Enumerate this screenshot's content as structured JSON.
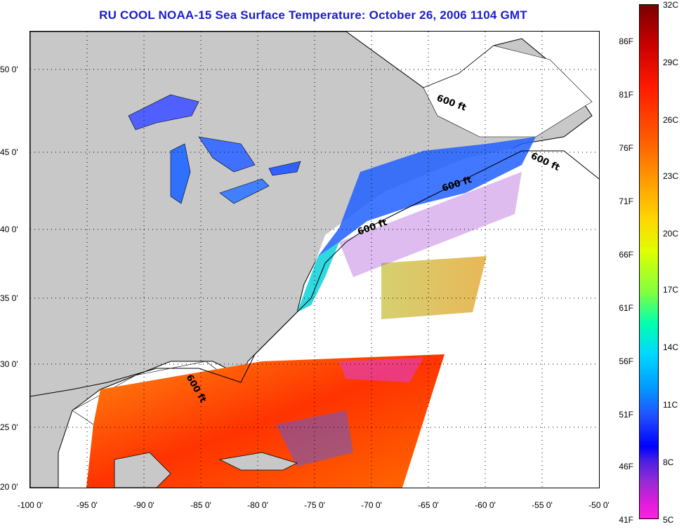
{
  "title": "RU COOL  NOAA-15  Sea Surface Temperature:  October 26, 2006 1104 GMT",
  "map": {
    "lat_ticks": [
      "50 0'",
      "45 0'",
      "40 0'",
      "35 0'",
      "30 0'",
      "25 0'",
      "20 0'"
    ],
    "lon_ticks": [
      "-100 0'",
      "-95 0'",
      "-90 0'",
      "-85 0'",
      "-80 0'",
      "-75 0'",
      "-70 0'",
      "-65 0'",
      "-60 0'",
      "-55 0'",
      "-50 0'"
    ],
    "contour_labels": [
      "600 ft",
      "600 ft",
      "600 ft",
      "600 ft",
      "600 ft"
    ],
    "colors": {
      "land": "#c8c8c8",
      "cloud": "#ffffff",
      "coast": "#000000"
    }
  },
  "colorbar": {
    "fahrenheit": [
      "86F",
      "81F",
      "76F",
      "71F",
      "66F",
      "61F",
      "56F",
      "51F",
      "46F",
      "41F"
    ],
    "celsius": [
      "32C",
      "29C",
      "26C",
      "23C",
      "20C",
      "17C",
      "14C",
      "11C",
      "8C",
      "5C"
    ]
  }
}
